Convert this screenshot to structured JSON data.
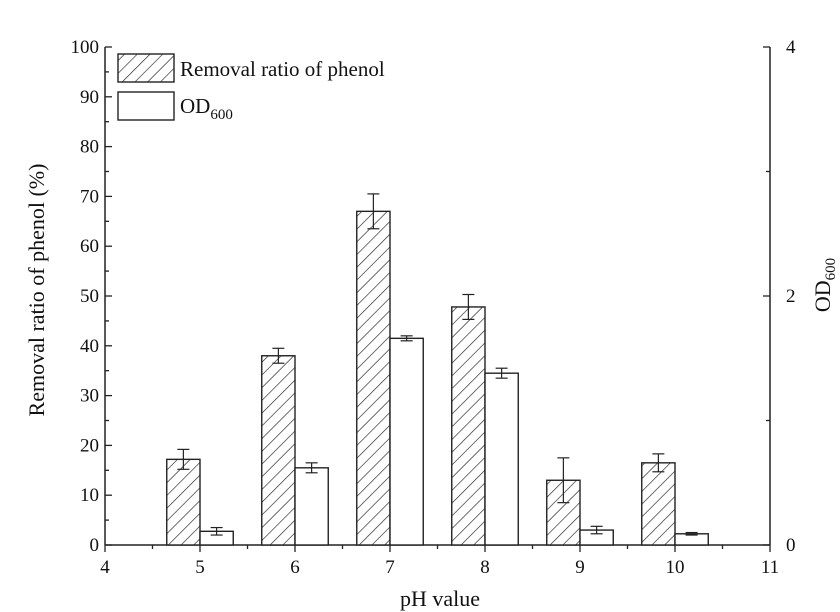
{
  "chart_data": {
    "type": "bar",
    "title": "",
    "xlabel": "pH value",
    "ylabel_left": "Removal ratio of phenol (%)",
    "ylabel_right_base": "OD",
    "ylabel_right_sub": "600",
    "x": [
      5,
      6,
      7,
      8,
      9,
      10
    ],
    "x_ticks": [
      4,
      5,
      6,
      7,
      8,
      9,
      10,
      11
    ],
    "xlim": [
      4,
      11
    ],
    "ylim_left": [
      0,
      100
    ],
    "y_ticks_left": [
      0,
      10,
      20,
      30,
      40,
      50,
      60,
      70,
      80,
      90,
      100
    ],
    "ylim_right": [
      0,
      4
    ],
    "y_ticks_right": [
      0,
      2,
      4
    ],
    "grid": false,
    "legend_position": "top-left",
    "series": [
      {
        "name": "Removal ratio of phenol",
        "axis": "left",
        "pattern": "hatched",
        "values": [
          17.2,
          38.0,
          67.0,
          47.8,
          13.0,
          16.5
        ],
        "errors": [
          2.0,
          1.5,
          3.5,
          2.5,
          4.5,
          1.8
        ]
      },
      {
        "name": "OD",
        "name_sub": "600",
        "axis": "right",
        "pattern": "open",
        "values": [
          0.11,
          0.62,
          1.66,
          1.38,
          0.12,
          0.09
        ],
        "errors": [
          0.03,
          0.04,
          0.02,
          0.04,
          0.03,
          0.01
        ]
      }
    ]
  }
}
